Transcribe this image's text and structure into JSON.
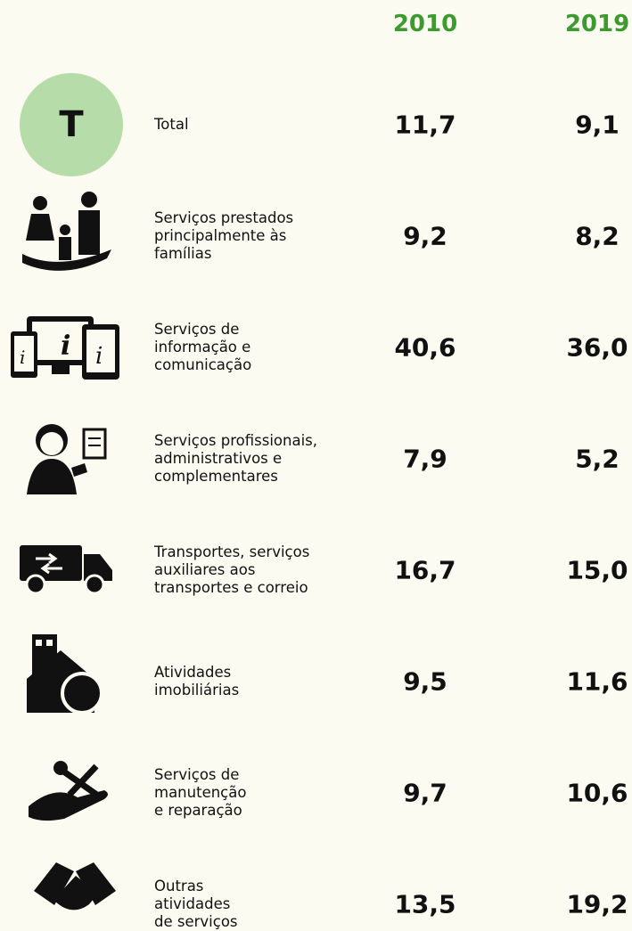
{
  "table": {
    "columns": [
      "2010",
      "2019"
    ],
    "rows": [
      {
        "badge": "T",
        "label": [
          "Total"
        ],
        "values": [
          "11,7",
          "9,1"
        ]
      },
      {
        "label": [
          "Serviços prestados",
          "principalmente às",
          "famílias"
        ],
        "values": [
          "9,2",
          "8,2"
        ]
      },
      {
        "label": [
          "Serviços de",
          "informação e",
          "comunicação"
        ],
        "values": [
          "40,6",
          "36,0"
        ]
      },
      {
        "label": [
          "Serviços profissionais,",
          "administrativos e",
          "complementares"
        ],
        "values": [
          "7,9",
          "5,2"
        ]
      },
      {
        "label": [
          "Transportes, serviços",
          "auxiliares aos",
          "transportes e correio"
        ],
        "values": [
          "16,7",
          "15,0"
        ]
      },
      {
        "label": [
          "Atividades",
          "imobiliárias"
        ],
        "values": [
          "9,5",
          "11,6"
        ]
      },
      {
        "label": [
          "Serviços de",
          "manutenção",
          "e reparação"
        ],
        "values": [
          "9,7",
          "10,6"
        ]
      },
      {
        "label": [
          "Outras",
          "atividades",
          "de serviços"
        ],
        "values": [
          "13,5",
          "19,2"
        ]
      }
    ]
  }
}
